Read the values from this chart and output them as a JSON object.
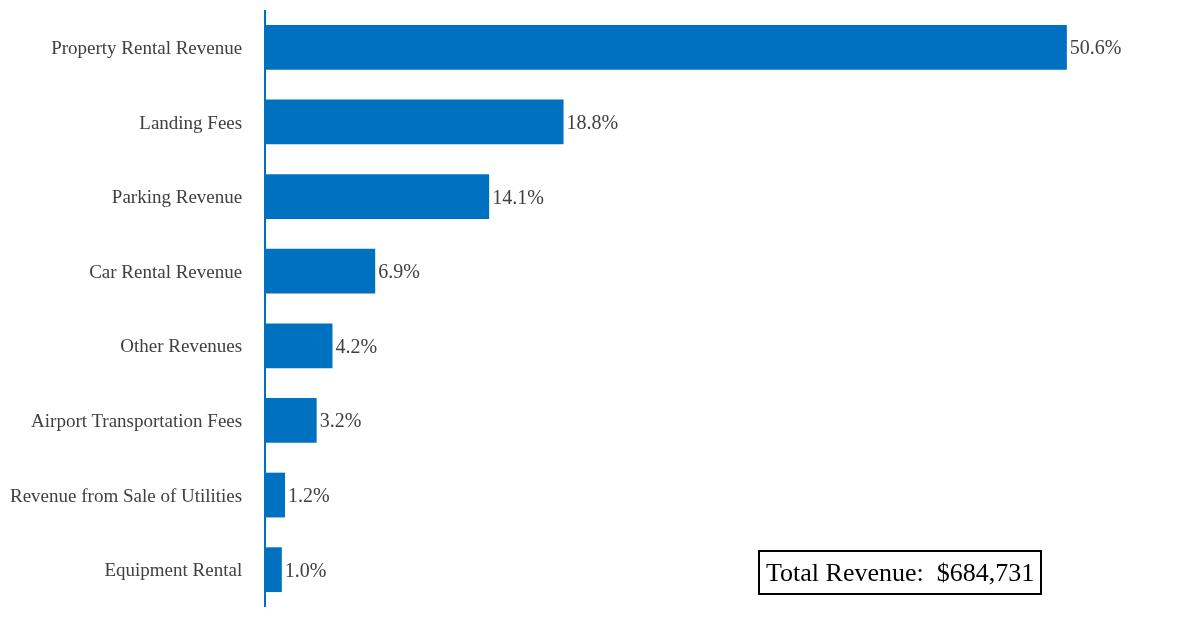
{
  "chart_data": {
    "type": "bar",
    "orientation": "horizontal",
    "categories": [
      "Property Rental Revenue",
      "Landing Fees",
      "Parking Revenue",
      "Car Rental Revenue",
      "Other Revenues",
      "Airport Transportation Fees",
      "Revenue from Sale of Utilities",
      "Equipment Rental"
    ],
    "values": [
      50.6,
      18.8,
      14.1,
      6.9,
      4.2,
      3.2,
      1.2,
      1.0
    ],
    "value_labels": [
      "50.6%",
      "18.8%",
      "14.1%",
      "6.9%",
      "4.2%",
      "3.2%",
      "1.2%",
      "1.0%"
    ],
    "color": "#0070c0",
    "annotations": [
      "Total Revenue:  $684,731"
    ],
    "legend": false
  }
}
